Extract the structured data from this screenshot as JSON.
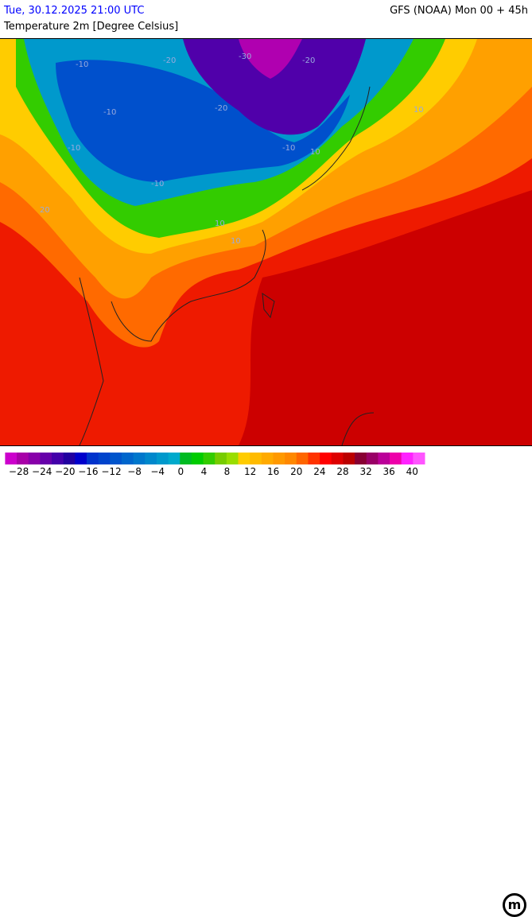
{
  "header": {
    "datetime": "Tue, 30.12.2025 21:00 UTC",
    "model_run": "GFS (NOAA) Mon 00 + 45h",
    "parameter": "Temperature 2m [Degree Celsius]"
  },
  "legend": {
    "labels": [
      "−28",
      "−24",
      "−20",
      "−16",
      "−12",
      "−8",
      "−4",
      "0",
      "4",
      "8",
      "12",
      "16",
      "20",
      "24",
      "28",
      "32",
      "36",
      "40"
    ],
    "colors": [
      "#cc00cc",
      "#a800a8",
      "#8800aa",
      "#6600aa",
      "#4400aa",
      "#2200a0",
      "#0000cc",
      "#0033cc",
      "#0044cc",
      "#0055cc",
      "#0066cc",
      "#0077cc",
      "#0088cc",
      "#0099cc",
      "#00aacc",
      "#00bb22",
      "#00cc00",
      "#33cc00",
      "#77cc00",
      "#99dd00",
      "#ffcc00",
      "#ffbb00",
      "#ffaa00",
      "#ff9900",
      "#ff8800",
      "#ff6600",
      "#ff3300",
      "#ff0000",
      "#dd0000",
      "#bb0000",
      "#880033",
      "#990066",
      "#bb0099",
      "#ee00aa",
      "#ff22ff",
      "#ff55ff"
    ]
  },
  "map": {
    "contour_labels": [
      "-30",
      "-20",
      "-20",
      "-10",
      "-10",
      "-10",
      "-10",
      "-20",
      "-10",
      "10",
      "10",
      "10",
      "10",
      "20"
    ]
  },
  "logo": "m"
}
